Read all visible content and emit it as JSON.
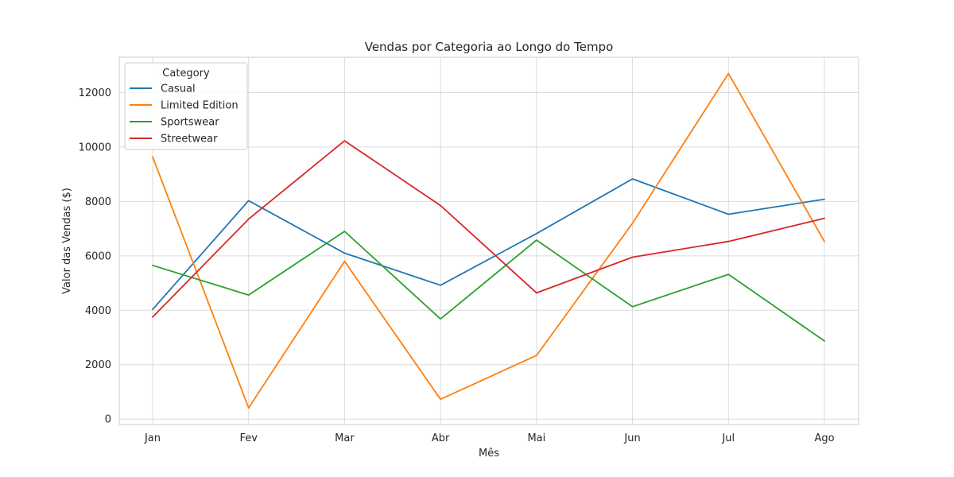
{
  "chart_data": {
    "type": "line",
    "title": "Vendas por Categoria ao Longo do Tempo",
    "xlabel": "Mês",
    "ylabel": "Valor das Vendas ($)",
    "categories": [
      "Jan",
      "Fev",
      "Mar",
      "Abr",
      "Mai",
      "Jun",
      "Jul",
      "Ago"
    ],
    "ylim": [
      -200,
      13300
    ],
    "yticks": [
      0,
      2000,
      4000,
      6000,
      8000,
      10000,
      12000
    ],
    "grid": true,
    "legend": {
      "title": "Category",
      "position": "top-left"
    },
    "series": [
      {
        "name": "Casual",
        "color": "#1f77b4",
        "values": [
          4030,
          8030,
          6100,
          4920,
          6820,
          8830,
          7530,
          8080
        ]
      },
      {
        "name": "Limited Edition",
        "color": "#ff7f0e",
        "values": [
          9640,
          410,
          5800,
          730,
          2340,
          7200,
          12700,
          6530
        ]
      },
      {
        "name": "Sportswear",
        "color": "#2ca02c",
        "values": [
          5650,
          4560,
          6900,
          3680,
          6580,
          4130,
          5320,
          2870
        ]
      },
      {
        "name": "Streetwear",
        "color": "#d62728",
        "values": [
          3750,
          7350,
          10230,
          7850,
          4640,
          5950,
          6530,
          7380
        ]
      }
    ]
  }
}
